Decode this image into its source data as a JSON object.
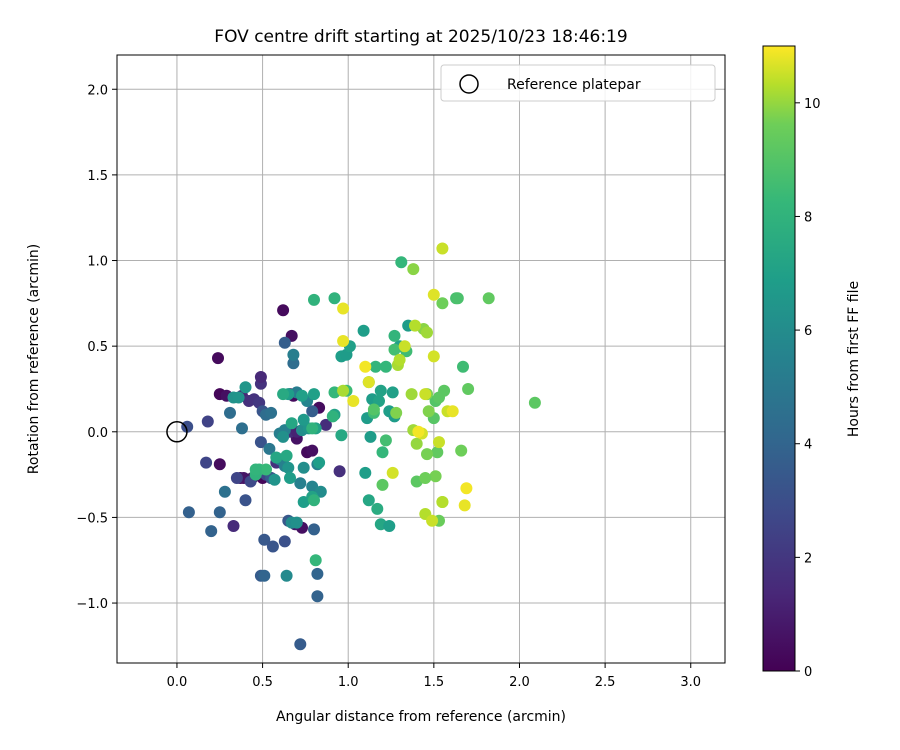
{
  "chart_data": {
    "type": "scatter",
    "title": "FOV centre drift starting at 2025/10/23 18:46:19",
    "xlabel": "Angular distance from reference (arcmin)",
    "ylabel": "Rotation from reference (arcmin)",
    "colorbar_label": "Hours from first FF file",
    "xlim": [
      -0.35,
      3.2
    ],
    "ylim": [
      -1.35,
      2.2
    ],
    "clim": [
      0,
      11
    ],
    "x_ticks": [
      0.0,
      0.5,
      1.0,
      1.5,
      2.0,
      2.5,
      3.0
    ],
    "x_tick_labels": [
      "0.0",
      "0.5",
      "1.0",
      "1.5",
      "2.0",
      "2.5",
      "3.0"
    ],
    "y_ticks": [
      -1.0,
      -0.5,
      0.0,
      0.5,
      1.0,
      1.5,
      2.0
    ],
    "y_tick_labels": [
      "−1.0",
      "−0.5",
      "0.0",
      "0.5",
      "1.0",
      "1.5",
      "2.0"
    ],
    "colorbar_ticks": [
      0,
      2,
      4,
      6,
      8,
      10
    ],
    "colorbar_tick_labels": [
      "0",
      "2",
      "4",
      "6",
      "8",
      "10"
    ],
    "grid": true,
    "legend": {
      "location": "top-right",
      "entries": [
        {
          "label": "Reference platepar",
          "marker": "open-circle"
        }
      ]
    },
    "reference_point": {
      "x": 0.0,
      "y": 0.0
    },
    "series": [
      {
        "name": "FOV centre",
        "points": [
          [
            0.24,
            0.43,
            0.3
          ],
          [
            0.25,
            0.22,
            0.2
          ],
          [
            0.29,
            0.21,
            0.5
          ],
          [
            0.25,
            -0.19,
            0.4
          ],
          [
            0.37,
            -0.27,
            0.5
          ],
          [
            0.39,
            -0.27,
            0.7
          ],
          [
            0.44,
            -0.27,
            0.6
          ],
          [
            0.5,
            -0.27,
            0.2
          ],
          [
            0.55,
            -0.27,
            0.3
          ],
          [
            0.62,
            0.71,
            0.3
          ],
          [
            0.67,
            0.56,
            0.5
          ],
          [
            0.68,
            0.21,
            0.3
          ],
          [
            0.66,
            0.22,
            0.3
          ],
          [
            0.76,
            -0.12,
            0.3
          ],
          [
            0.79,
            -0.11,
            0.5
          ],
          [
            0.83,
            0.14,
            0.4
          ],
          [
            0.7,
            -0.04,
            0.6
          ],
          [
            0.73,
            -0.56,
            0.5
          ],
          [
            0.69,
            -0.54,
            0.8
          ],
          [
            0.33,
            -0.55,
            1.5
          ],
          [
            0.38,
            0.21,
            1.3
          ],
          [
            0.42,
            0.18,
            1.7
          ],
          [
            0.45,
            0.19,
            1.8
          ],
          [
            0.48,
            0.17,
            2.0
          ],
          [
            0.49,
            0.28,
            1.8
          ],
          [
            0.49,
            0.32,
            1.4
          ],
          [
            0.58,
            -0.18,
            1.8
          ],
          [
            0.63,
            0.0,
            1.9
          ],
          [
            0.66,
            0.0,
            1.6
          ],
          [
            0.7,
            0.0,
            1.2
          ],
          [
            0.87,
            0.04,
            1.6
          ],
          [
            0.95,
            -0.23,
            1.7
          ],
          [
            0.18,
            0.06,
            2.5
          ],
          [
            0.06,
            0.03,
            3.0
          ],
          [
            0.17,
            -0.18,
            2.6
          ],
          [
            0.35,
            -0.27,
            2.6
          ],
          [
            0.43,
            -0.29,
            2.8
          ],
          [
            0.49,
            -0.06,
            3.2
          ],
          [
            0.5,
            0.12,
            3.3
          ],
          [
            0.52,
            -0.25,
            2.6
          ],
          [
            0.4,
            -0.4,
            3.2
          ],
          [
            0.49,
            -0.84,
            3.6
          ],
          [
            0.51,
            -0.84,
            4.0
          ],
          [
            0.51,
            -0.63,
            3.4
          ],
          [
            0.56,
            -0.67,
            3.3
          ],
          [
            0.63,
            -0.64,
            3.1
          ],
          [
            0.55,
            -0.27,
            3.5
          ],
          [
            0.65,
            -0.52,
            3.4
          ],
          [
            0.8,
            -0.57,
            3.8
          ],
          [
            0.82,
            -0.83,
            4.0
          ],
          [
            0.82,
            -0.96,
            3.9
          ],
          [
            0.72,
            -1.24,
            3.6
          ],
          [
            0.79,
            0.12,
            3.7
          ],
          [
            0.63,
            0.52,
            3.7
          ],
          [
            0.68,
            0.4,
            4.4
          ],
          [
            0.07,
            -0.47,
            3.8
          ],
          [
            0.25,
            -0.47,
            3.9
          ],
          [
            0.2,
            -0.58,
            3.9
          ],
          [
            0.28,
            -0.35,
            4.6
          ],
          [
            0.31,
            0.11,
            4.4
          ],
          [
            0.38,
            0.02,
            4.5
          ],
          [
            0.52,
            0.1,
            4.4
          ],
          [
            0.55,
            0.11,
            4.6
          ],
          [
            0.54,
            -0.1,
            4.9
          ],
          [
            0.6,
            -0.16,
            5.1
          ],
          [
            0.63,
            -0.2,
            5.4
          ],
          [
            0.6,
            -0.01,
            5.3
          ],
          [
            0.63,
            0.01,
            5.4
          ],
          [
            0.68,
            0.45,
            5.3
          ],
          [
            0.7,
            0.23,
            5.2
          ],
          [
            0.76,
            0.18,
            5.6
          ],
          [
            0.82,
            -0.19,
            5.4
          ],
          [
            0.72,
            -0.3,
            5.4
          ],
          [
            0.79,
            -0.32,
            5.6
          ],
          [
            0.84,
            -0.35,
            6.0
          ],
          [
            0.64,
            -0.84,
            5.9
          ],
          [
            0.67,
            -0.53,
            6.0
          ],
          [
            0.7,
            -0.53,
            6.2
          ],
          [
            0.33,
            0.2,
            6.3
          ],
          [
            0.36,
            0.2,
            6.4
          ],
          [
            0.4,
            0.26,
            6.5
          ],
          [
            0.62,
            -0.03,
            6.2
          ],
          [
            0.65,
            -0.21,
            6.4
          ],
          [
            0.74,
            -0.21,
            6.1
          ],
          [
            0.73,
            0.01,
            6.1
          ],
          [
            0.77,
            0.02,
            6.4
          ],
          [
            0.74,
            0.07,
            6.7
          ],
          [
            0.65,
            0.22,
            6.9
          ],
          [
            0.73,
            0.21,
            7.0
          ],
          [
            0.8,
            0.22,
            7.0
          ],
          [
            0.57,
            -0.28,
            6.4
          ],
          [
            0.66,
            -0.27,
            6.9
          ],
          [
            0.74,
            -0.41,
            6.9
          ],
          [
            0.79,
            -0.38,
            7.1
          ],
          [
            0.58,
            -0.15,
            7.3
          ],
          [
            0.64,
            -0.14,
            7.4
          ],
          [
            0.67,
            0.05,
            7.3
          ],
          [
            0.81,
            0.02,
            7.1
          ],
          [
            0.83,
            -0.18,
            6.9
          ],
          [
            0.92,
            0.1,
            7.1
          ],
          [
            0.96,
            -0.02,
            7.4
          ],
          [
            0.96,
            0.44,
            6.9
          ],
          [
            0.99,
            0.45,
            6.8
          ],
          [
            1.01,
            0.5,
            7.0
          ],
          [
            1.09,
            0.59,
            6.9
          ],
          [
            1.11,
            0.08,
            6.8
          ],
          [
            1.14,
            0.19,
            6.8
          ],
          [
            1.18,
            0.18,
            7.1
          ],
          [
            1.19,
            0.24,
            7.1
          ],
          [
            1.24,
            0.12,
            6.9
          ],
          [
            1.27,
            0.09,
            6.8
          ],
          [
            1.26,
            0.23,
            7.0
          ],
          [
            1.1,
            -0.24,
            6.9
          ],
          [
            1.13,
            -0.03,
            6.8
          ],
          [
            1.12,
            -0.4,
            7.3
          ],
          [
            1.19,
            -0.54,
            7.3
          ],
          [
            1.24,
            -0.55,
            6.9
          ],
          [
            1.17,
            -0.45,
            7.6
          ],
          [
            1.35,
            0.62,
            6.8
          ],
          [
            1.3,
            0.5,
            7.0
          ],
          [
            0.62,
            0.22,
            7.5
          ],
          [
            0.48,
            -0.22,
            8.2
          ],
          [
            0.52,
            -0.22,
            8.3
          ],
          [
            0.46,
            -0.25,
            8.0
          ],
          [
            0.46,
            -0.22,
            8.1
          ],
          [
            0.8,
            0.77,
            8.0
          ],
          [
            0.92,
            0.78,
            8.0
          ],
          [
            0.92,
            0.23,
            8.2
          ],
          [
            0.99,
            0.24,
            8.4
          ],
          [
            0.91,
            0.09,
            8.0
          ],
          [
            0.79,
            0.02,
            8.0
          ],
          [
            0.8,
            -0.4,
            8.0
          ],
          [
            0.81,
            -0.75,
            8.2
          ],
          [
            1.16,
            0.38,
            8.1
          ],
          [
            1.22,
            0.38,
            8.2
          ],
          [
            1.27,
            0.56,
            8.1
          ],
          [
            1.31,
            0.99,
            8.2
          ],
          [
            1.2,
            -0.12,
            8.2
          ],
          [
            1.27,
            0.48,
            8.6
          ],
          [
            1.34,
            0.47,
            8.5
          ],
          [
            1.12,
            0.29,
            8.5
          ],
          [
            1.15,
            0.11,
            8.5
          ],
          [
            1.22,
            -0.05,
            8.6
          ],
          [
            1.15,
            0.13,
            9.0
          ],
          [
            1.2,
            -0.31,
            9.2
          ],
          [
            1.4,
            -0.29,
            9.2
          ],
          [
            1.5,
            0.08,
            9.1
          ],
          [
            1.51,
            0.18,
            9.0
          ],
          [
            1.53,
            0.2,
            9.2
          ],
          [
            1.56,
            0.24,
            9.2
          ],
          [
            1.63,
            0.78,
            8.7
          ],
          [
            1.64,
            0.78,
            8.8
          ],
          [
            1.67,
            0.38,
            8.5
          ],
          [
            1.7,
            0.25,
            9.3
          ],
          [
            1.82,
            0.78,
            9.3
          ],
          [
            2.09,
            0.17,
            9.2
          ],
          [
            1.66,
            -0.11,
            9.6
          ],
          [
            1.52,
            -0.12,
            9.3
          ],
          [
            1.53,
            -0.52,
            9.5
          ],
          [
            1.51,
            -0.26,
            9.7
          ],
          [
            1.45,
            -0.27,
            9.6
          ],
          [
            1.46,
            -0.13,
            9.7
          ],
          [
            1.47,
            0.12,
            9.8
          ],
          [
            1.46,
            0.22,
            9.7
          ],
          [
            1.55,
            0.75,
            9.6
          ],
          [
            1.44,
            0.6,
            9.9
          ],
          [
            1.46,
            0.58,
            10.1
          ],
          [
            1.39,
            0.62,
            10.3
          ],
          [
            1.38,
            0.95,
            9.9
          ],
          [
            1.37,
            0.22,
            10.1
          ],
          [
            1.38,
            0.01,
            10.1
          ],
          [
            1.4,
            -0.07,
            10.0
          ],
          [
            1.28,
            0.11,
            9.8
          ],
          [
            1.29,
            0.39,
            10.2
          ],
          [
            1.3,
            0.42,
            10.3
          ],
          [
            1.33,
            0.5,
            10.5
          ],
          [
            1.45,
            -0.48,
            10.3
          ],
          [
            1.49,
            -0.52,
            10.5
          ],
          [
            1.55,
            -0.41,
            10.3
          ],
          [
            1.53,
            -0.06,
            10.5
          ],
          [
            1.58,
            0.12,
            10.5
          ],
          [
            1.55,
            1.07,
            10.5
          ],
          [
            1.5,
            0.8,
            10.7
          ],
          [
            1.5,
            0.44,
            10.6
          ],
          [
            1.45,
            0.22,
            10.5
          ],
          [
            1.43,
            -0.01,
            10.6
          ],
          [
            1.26,
            -0.24,
            10.6
          ],
          [
            1.12,
            0.29,
            10.7
          ],
          [
            1.1,
            0.38,
            10.9
          ],
          [
            1.03,
            0.18,
            10.8
          ],
          [
            0.97,
            0.53,
            10.8
          ],
          [
            0.97,
            0.72,
            10.8
          ],
          [
            1.61,
            0.12,
            10.8
          ],
          [
            1.69,
            -0.33,
            10.9
          ],
          [
            1.68,
            -0.43,
            10.8
          ],
          [
            0.97,
            0.24,
            10.2
          ],
          [
            1.55,
            -0.41,
            10.3
          ],
          [
            1.41,
            0.0,
            10.9
          ]
        ]
      }
    ]
  }
}
